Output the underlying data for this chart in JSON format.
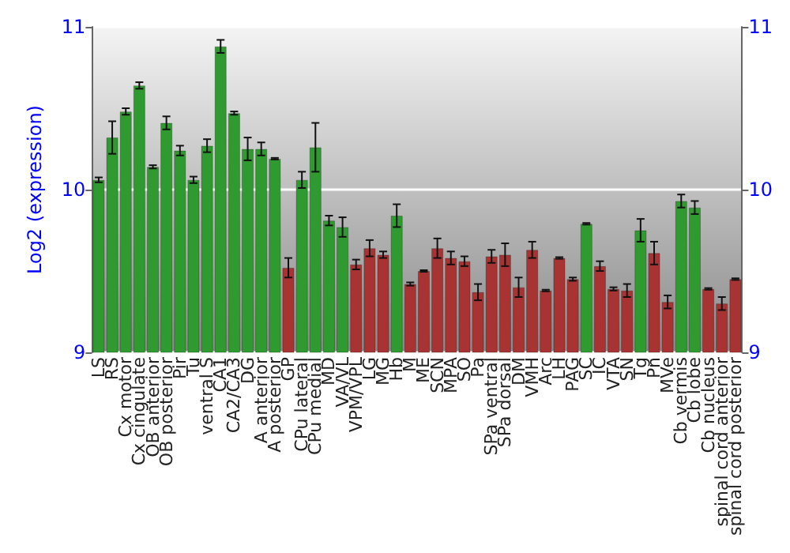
{
  "chart_data": {
    "type": "bar",
    "ylabel": "Log2 (expression)",
    "categories": [
      "LS",
      "RS",
      "Cx motor",
      "Cx cingulate",
      "OB anterior",
      "OB posterior",
      "Pir",
      "Tu",
      "ventral S",
      "CA1",
      "CA2/CA3",
      "DG",
      "A anterior",
      "A posterior",
      "GP",
      "CPu lateral",
      "CPu medial",
      "MD",
      "VA/VL",
      "VPM/VPL",
      "LG",
      "MG",
      "Hb",
      "M",
      "ME",
      "SCN",
      "MPA",
      "SO",
      "Pa",
      "SPa ventral",
      "SPa dorsal",
      "DM",
      "VMH",
      "Arc",
      "LH",
      "PAG",
      "SC",
      "IC",
      "VTA",
      "SN",
      "Tg",
      "Pn",
      "MVe",
      "Cb vermis",
      "Cb lobe",
      "Cb nucleus",
      "spinal cord anterior",
      "spinal cord posterior"
    ],
    "values": [
      10.06,
      10.32,
      10.48,
      10.64,
      10.14,
      10.41,
      10.24,
      10.06,
      10.27,
      10.88,
      10.47,
      10.25,
      10.25,
      10.19,
      9.52,
      10.06,
      10.26,
      9.81,
      9.77,
      9.54,
      9.64,
      9.6,
      9.84,
      9.42,
      9.5,
      9.64,
      9.58,
      9.56,
      9.37,
      9.59,
      9.6,
      9.4,
      9.63,
      9.38,
      9.58,
      9.45,
      9.79,
      9.53,
      9.39,
      9.38,
      9.75,
      9.61,
      9.31,
      9.93,
      9.89,
      9.39,
      9.3,
      9.45
    ],
    "errors": [
      0.015,
      0.1,
      0.02,
      0.02,
      0.01,
      0.04,
      0.03,
      0.02,
      0.04,
      0.04,
      0.01,
      0.07,
      0.04,
      0.005,
      0.06,
      0.05,
      0.15,
      0.03,
      0.06,
      0.03,
      0.05,
      0.02,
      0.07,
      0.01,
      0.005,
      0.06,
      0.04,
      0.03,
      0.05,
      0.04,
      0.07,
      0.06,
      0.05,
      0.005,
      0.005,
      0.01,
      0.005,
      0.03,
      0.01,
      0.04,
      0.07,
      0.07,
      0.04,
      0.04,
      0.04,
      0.005,
      0.04,
      0.005
    ],
    "colors": [
      "#2f9a2f",
      "#2f9a2f",
      "#2f9a2f",
      "#2f9a2f",
      "#2f9a2f",
      "#2f9a2f",
      "#2f9a2f",
      "#2f9a2f",
      "#2f9a2f",
      "#2f9a2f",
      "#2f9a2f",
      "#2f9a2f",
      "#2f9a2f",
      "#2f9a2f",
      "#a83333",
      "#2f9a2f",
      "#2f9a2f",
      "#2f9a2f",
      "#2f9a2f",
      "#a83333",
      "#a83333",
      "#a83333",
      "#2f9a2f",
      "#a83333",
      "#a83333",
      "#a83333",
      "#a83333",
      "#a83333",
      "#a83333",
      "#a83333",
      "#a83333",
      "#a83333",
      "#a83333",
      "#a83333",
      "#a83333",
      "#a83333",
      "#2f9a2f",
      "#a83333",
      "#a83333",
      "#a83333",
      "#2f9a2f",
      "#a83333",
      "#a83333",
      "#2f9a2f",
      "#2f9a2f",
      "#a83333",
      "#a83333",
      "#a83333"
    ],
    "ylim": [
      9,
      11
    ],
    "yticks": [
      9,
      10,
      11
    ],
    "y2lim": [
      9,
      11
    ],
    "y2ticks": [
      9,
      10,
      11
    ],
    "grid": "y"
  }
}
